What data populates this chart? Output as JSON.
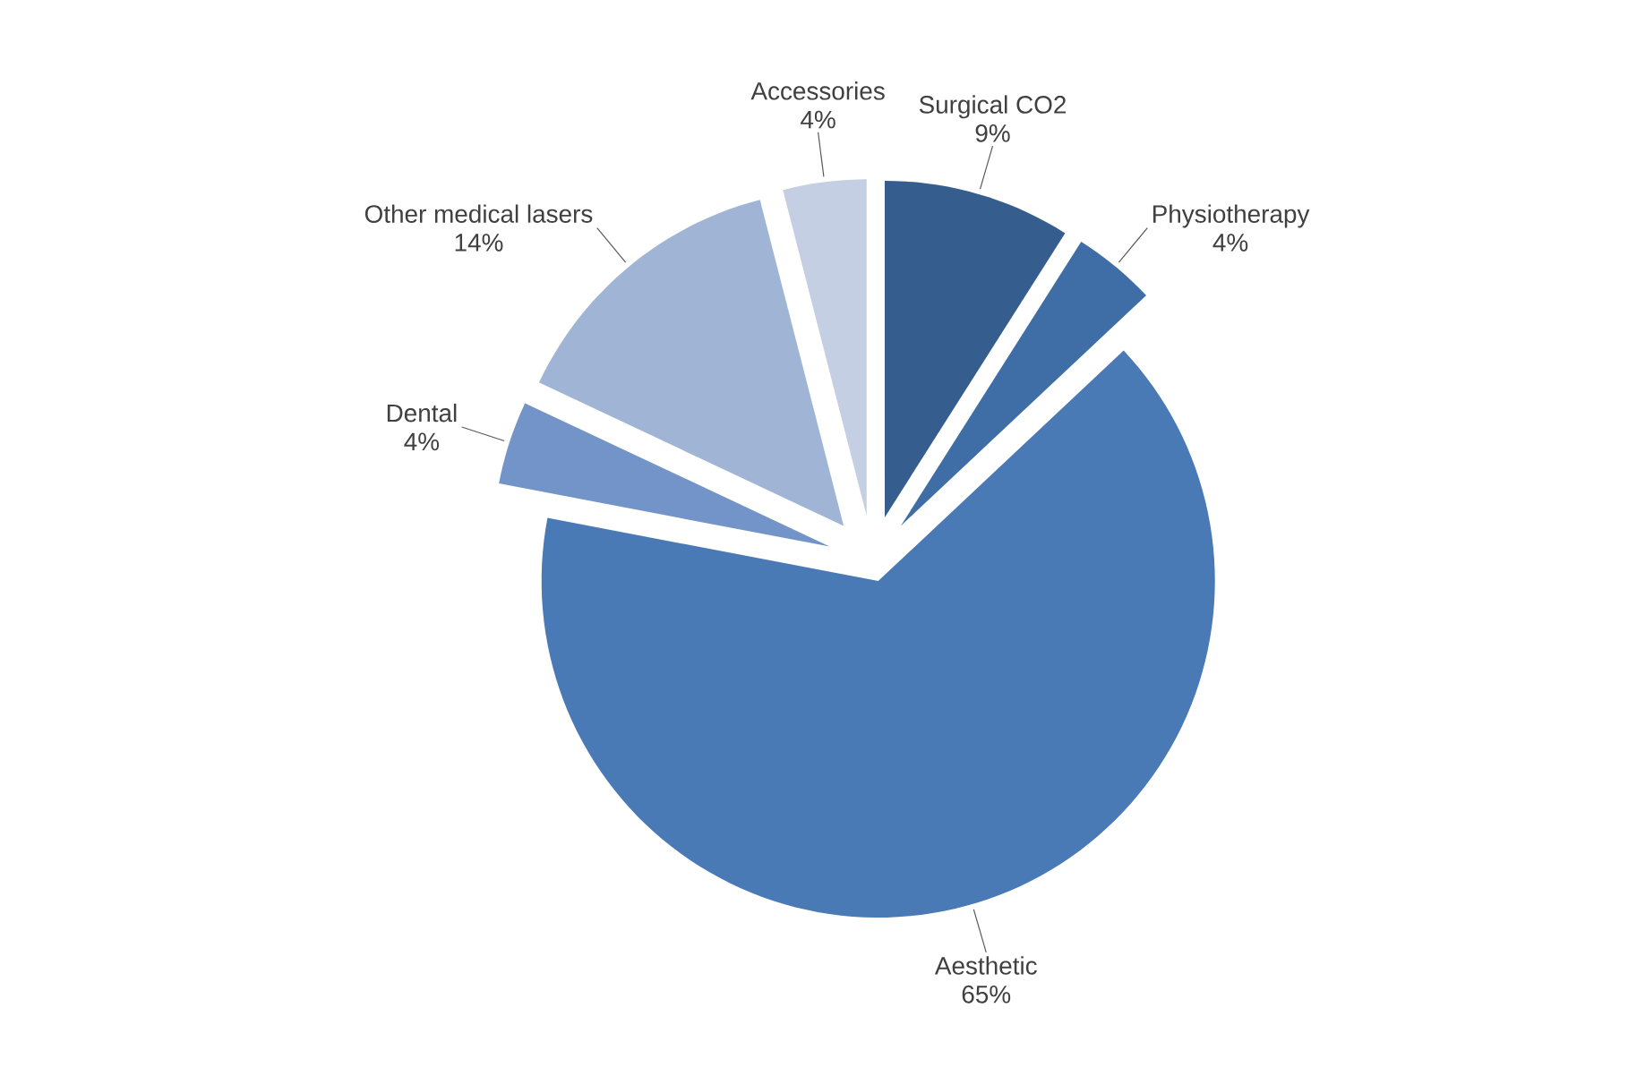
{
  "chart_data": {
    "type": "pie",
    "categories": [
      "Surgical CO2",
      "Physiotherapy",
      "Aesthetic",
      "Dental",
      "Other medical lasers",
      "Accessories"
    ],
    "values": [
      9,
      4,
      65,
      4,
      14,
      4
    ],
    "value_labels": [
      "9%",
      "4%",
      "65%",
      "4%",
      "14%",
      "4%"
    ],
    "colors": [
      "#355e8e",
      "#3f6ea6",
      "#4a7ab5",
      "#7294c8",
      "#a0b4d6",
      "#c4cfe3"
    ]
  }
}
